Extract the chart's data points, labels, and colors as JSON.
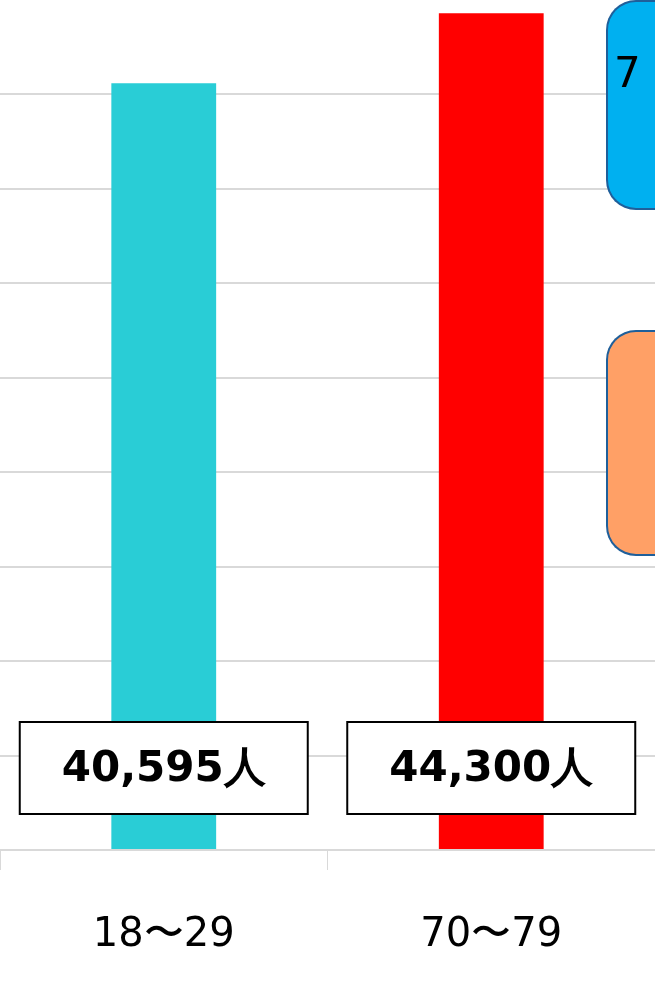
{
  "chart_data": {
    "type": "bar",
    "categories": [
      "18〜29",
      "70〜79"
    ],
    "values": [
      40595,
      44300
    ],
    "colors": [
      "#29cdd6",
      "#ff0000"
    ],
    "value_labels": [
      "40,595人",
      "44,300人"
    ],
    "yticks": [
      {
        "value": 0,
        "label": null
      },
      {
        "value": 5000,
        "label": null
      },
      {
        "value": 10000,
        "label": null
      },
      {
        "value": 15000,
        "label": null
      },
      {
        "value": 20000,
        "label": null
      },
      {
        "value": 25000,
        "label": null
      },
      {
        "value": 30000,
        "label": null
      },
      {
        "value": 35000,
        "label": null
      },
      {
        "value": 40000,
        "label": null
      }
    ],
    "tick_labels": "x",
    "grid": "y",
    "legend": false,
    "annotations": [
      "7"
    ]
  }
}
